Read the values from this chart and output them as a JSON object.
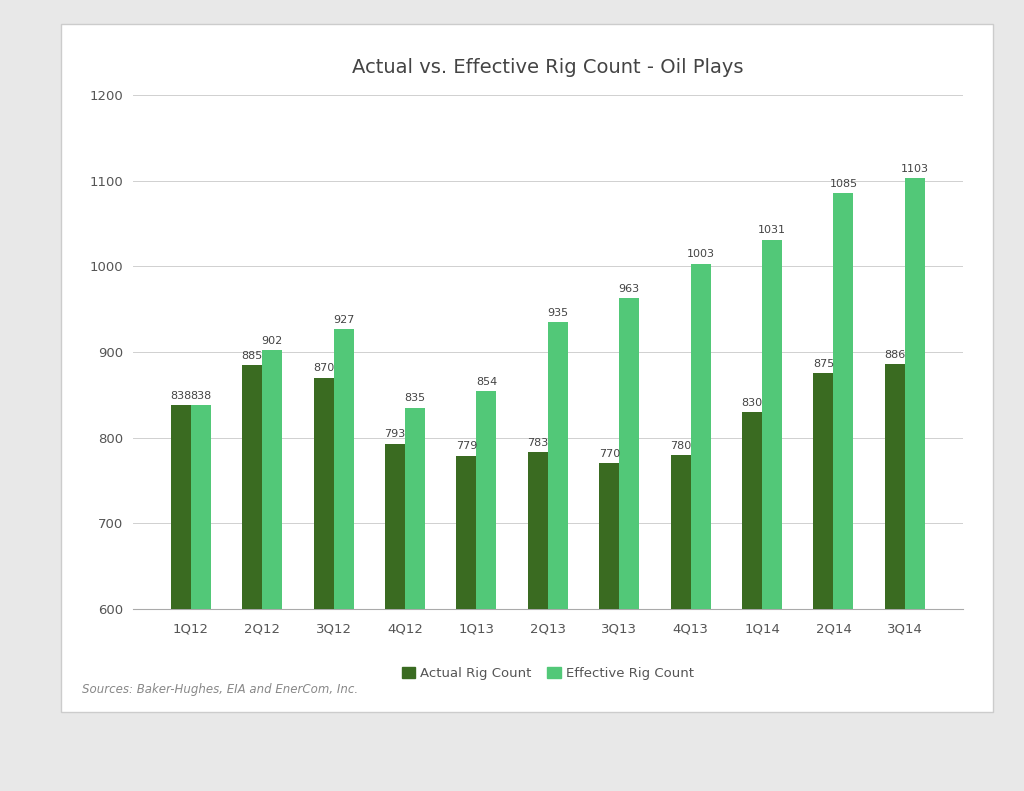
{
  "title": "Actual vs. Effective Rig Count - Oil Plays",
  "categories": [
    "1Q12",
    "2Q12",
    "3Q12",
    "4Q12",
    "1Q13",
    "2Q13",
    "3Q13",
    "4Q13",
    "1Q14",
    "2Q14",
    "3Q14"
  ],
  "actual": [
    838,
    885,
    870,
    793,
    779,
    783,
    770,
    780,
    830,
    875,
    886
  ],
  "effective": [
    838,
    902,
    927,
    835,
    854,
    935,
    963,
    1003,
    1031,
    1085,
    1103
  ],
  "actual_color": "#3a6b21",
  "effective_color": "#52c878",
  "ylim": [
    600,
    1200
  ],
  "yticks": [
    600,
    700,
    800,
    900,
    1000,
    1100,
    1200
  ],
  "legend_actual": "Actual Rig Count",
  "legend_effective": "Effective Rig Count",
  "source_text": "Sources: Baker-Hughes, EIA and EnerCom, Inc.",
  "outer_bg": "#e8e8e8",
  "panel_bg": "#ffffff",
  "border_color": "#cccccc",
  "grid_color": "#d0d0d0",
  "title_fontsize": 14,
  "label_fontsize": 8,
  "tick_fontsize": 9.5,
  "source_fontsize": 8.5,
  "bar_width": 0.28
}
